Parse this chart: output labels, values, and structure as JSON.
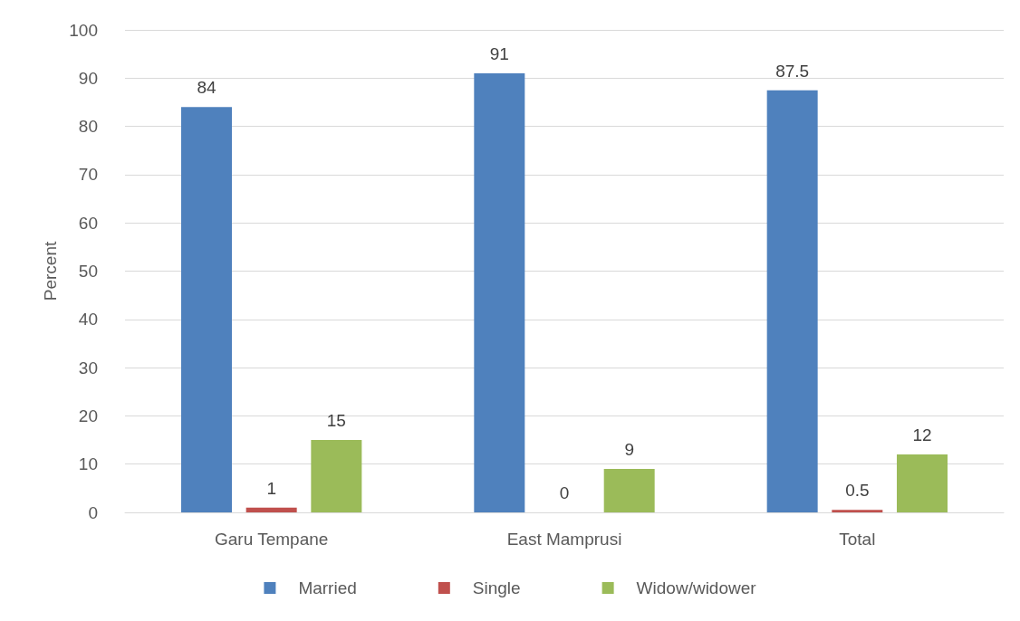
{
  "chart_data": {
    "type": "bar",
    "ylabel": "Percent",
    "categories": [
      "Garu Tempane",
      "East Mamprusi",
      "Total"
    ],
    "series": [
      {
        "name": "Married",
        "color": "#4f81bd",
        "values": [
          84,
          91,
          87.5
        ]
      },
      {
        "name": "Single",
        "color": "#c0504d",
        "values": [
          1,
          0,
          0.5
        ]
      },
      {
        "name": "Widow/widower",
        "color": "#9bbb59",
        "values": [
          15,
          9,
          12
        ]
      }
    ],
    "ylim": [
      0,
      100
    ],
    "yticks": [
      0,
      10,
      20,
      30,
      40,
      50,
      60,
      70,
      80,
      90,
      100
    ],
    "grid": "y",
    "legend": "bottom",
    "data_labels": true
  }
}
